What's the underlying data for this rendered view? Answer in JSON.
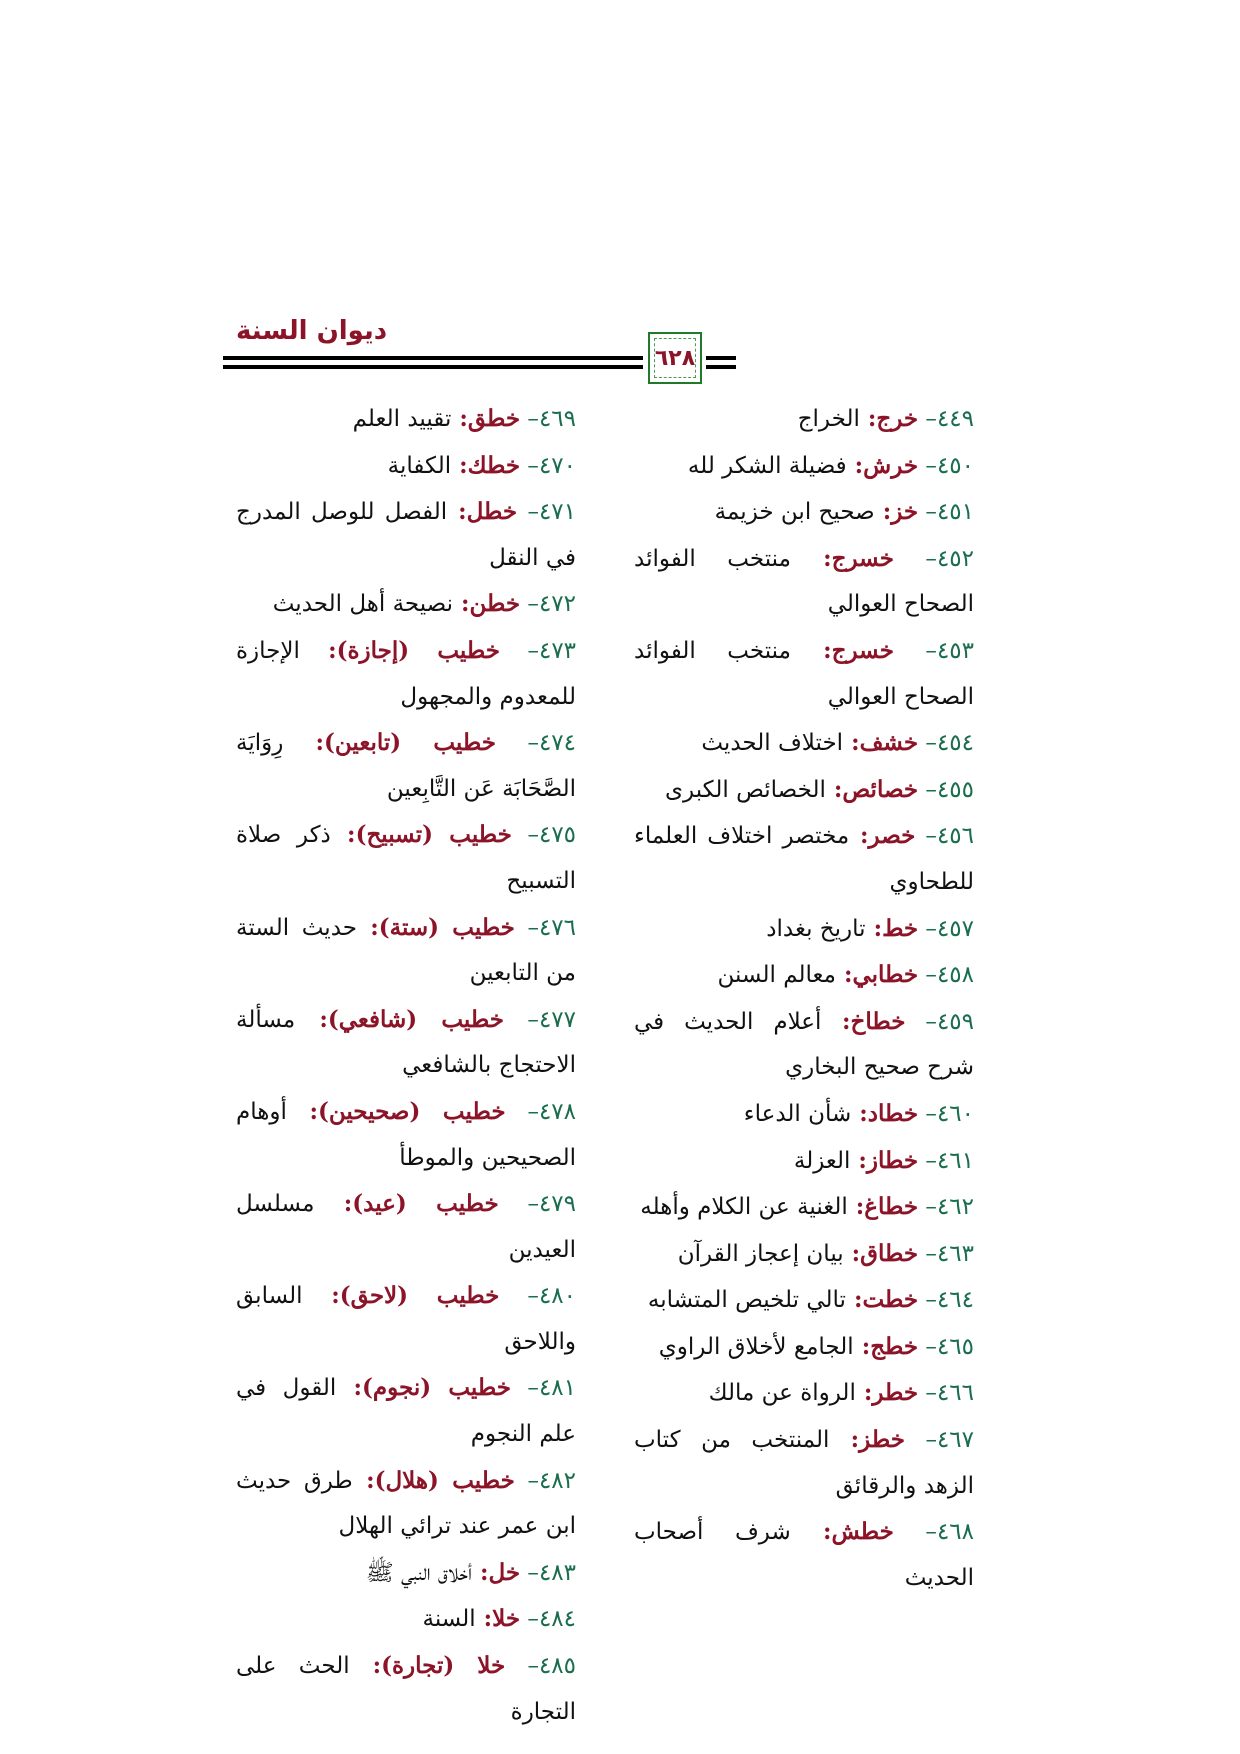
{
  "header": {
    "title": "ديوان السنة",
    "page_number": "٦٢٨"
  },
  "colors": {
    "number": "#1a6e4e",
    "code": "#8b1428",
    "frame": "#1f7a2a"
  },
  "right_column": [
    {
      "num": "٤٤٩",
      "code": "خرج",
      "title": "الخراج"
    },
    {
      "num": "٤٥٠",
      "code": "خرش",
      "title": "فضيلة الشكر لله"
    },
    {
      "num": "٤٥١",
      "code": "خز",
      "title": "صحيح ابن خزيمة"
    },
    {
      "num": "٤٥٢",
      "code": "خسرج",
      "title": "منتخب الفوائد الصحاح العوالي"
    },
    {
      "num": "٤٥٣",
      "code": "خسرج",
      "title": "منتخب الفوائد الصحاح العوالي"
    },
    {
      "num": "٤٥٤",
      "code": "خشف",
      "title": "اختلاف الحديث"
    },
    {
      "num": "٤٥٥",
      "code": "خصائص",
      "title": "الخصائص الكبرى"
    },
    {
      "num": "٤٥٦",
      "code": "خصر",
      "title": "مختصر اختلاف العلماء للطحاوي"
    },
    {
      "num": "٤٥٧",
      "code": "خط",
      "title": "تاريخ بغداد"
    },
    {
      "num": "٤٥٨",
      "code": "خطابي",
      "title": "معالم السنن"
    },
    {
      "num": "٤٥٩",
      "code": "خطاخ",
      "title": "أعلام الحديث في شرح صحيح البخاري"
    },
    {
      "num": "٤٦٠",
      "code": "خطاد",
      "title": "شأن الدعاء"
    },
    {
      "num": "٤٦١",
      "code": "خطاز",
      "title": "العزلة"
    },
    {
      "num": "٤٦٢",
      "code": "خطاغ",
      "title": "الغنية عن الكلام وأهله"
    },
    {
      "num": "٤٦٣",
      "code": "خطاق",
      "title": "بيان إعجاز القرآن"
    },
    {
      "num": "٤٦٤",
      "code": "خطت",
      "title": "تالي تلخيص المتشابه"
    },
    {
      "num": "٤٦٥",
      "code": "خطج",
      "title": "الجامع لأخلاق الراوي"
    },
    {
      "num": "٤٦٦",
      "code": "خطر",
      "title": "الرواة عن مالك"
    },
    {
      "num": "٤٦٧",
      "code": "خطز",
      "title": "المنتخب من كتاب الزهد والرقائق"
    },
    {
      "num": "٤٦٨",
      "code": "خطش",
      "title": "شرف أصحاب الحديث"
    }
  ],
  "left_column": [
    {
      "num": "٤٦٩",
      "code": "خطق",
      "title": "تقييد العلم"
    },
    {
      "num": "٤٧٠",
      "code": "خطك",
      "title": "الكفاية"
    },
    {
      "num": "٤٧١",
      "code": "خطل",
      "title": "الفصل للوصل المدرج في النقل"
    },
    {
      "num": "٤٧٢",
      "code": "خطن",
      "title": "نصيحة أهل الحديث"
    },
    {
      "num": "٤٧٣",
      "code": "خطيب (إجازة)",
      "title": "الإجازة للمعدوم والمجهول"
    },
    {
      "num": "٤٧٤",
      "code": "خطيب (تابعين)",
      "title": "رِوَايَة الصَّحَابَة عَن التَّابِعين"
    },
    {
      "num": "٤٧٥",
      "code": "خطيب (تسبيح)",
      "title": "ذكر صلاة التسبيح"
    },
    {
      "num": "٤٧٦",
      "code": "خطيب (ستة)",
      "title": "حديث الستة من التابعين"
    },
    {
      "num": "٤٧٧",
      "code": "خطيب (شافعي)",
      "title": "مسألة الاحتجاج بالشافعي"
    },
    {
      "num": "٤٧٨",
      "code": "خطيب (صحيحين)",
      "title": "أوهام الصحيحين والموطأ"
    },
    {
      "num": "٤٧٩",
      "code": "خطيب (عيد)",
      "title": "مسلسل العيدين"
    },
    {
      "num": "٤٨٠",
      "code": "خطيب (لاحق)",
      "title": "السابق واللاحق"
    },
    {
      "num": "٤٨١",
      "code": "خطيب (نجوم)",
      "title": "القول في علم النجوم"
    },
    {
      "num": "٤٨٢",
      "code": "خطيب (هلال)",
      "title": "طرق حديث ابن عمر عند ترائي الهلال"
    },
    {
      "num": "٤٨٣",
      "code": "خل",
      "title": "أخلاق النبي ﷺ"
    },
    {
      "num": "٤٨٤",
      "code": "خلا",
      "title": "السنة"
    },
    {
      "num": "٤٨٥",
      "code": "خلا (تجارة)",
      "title": "الحث على التجارة"
    }
  ]
}
